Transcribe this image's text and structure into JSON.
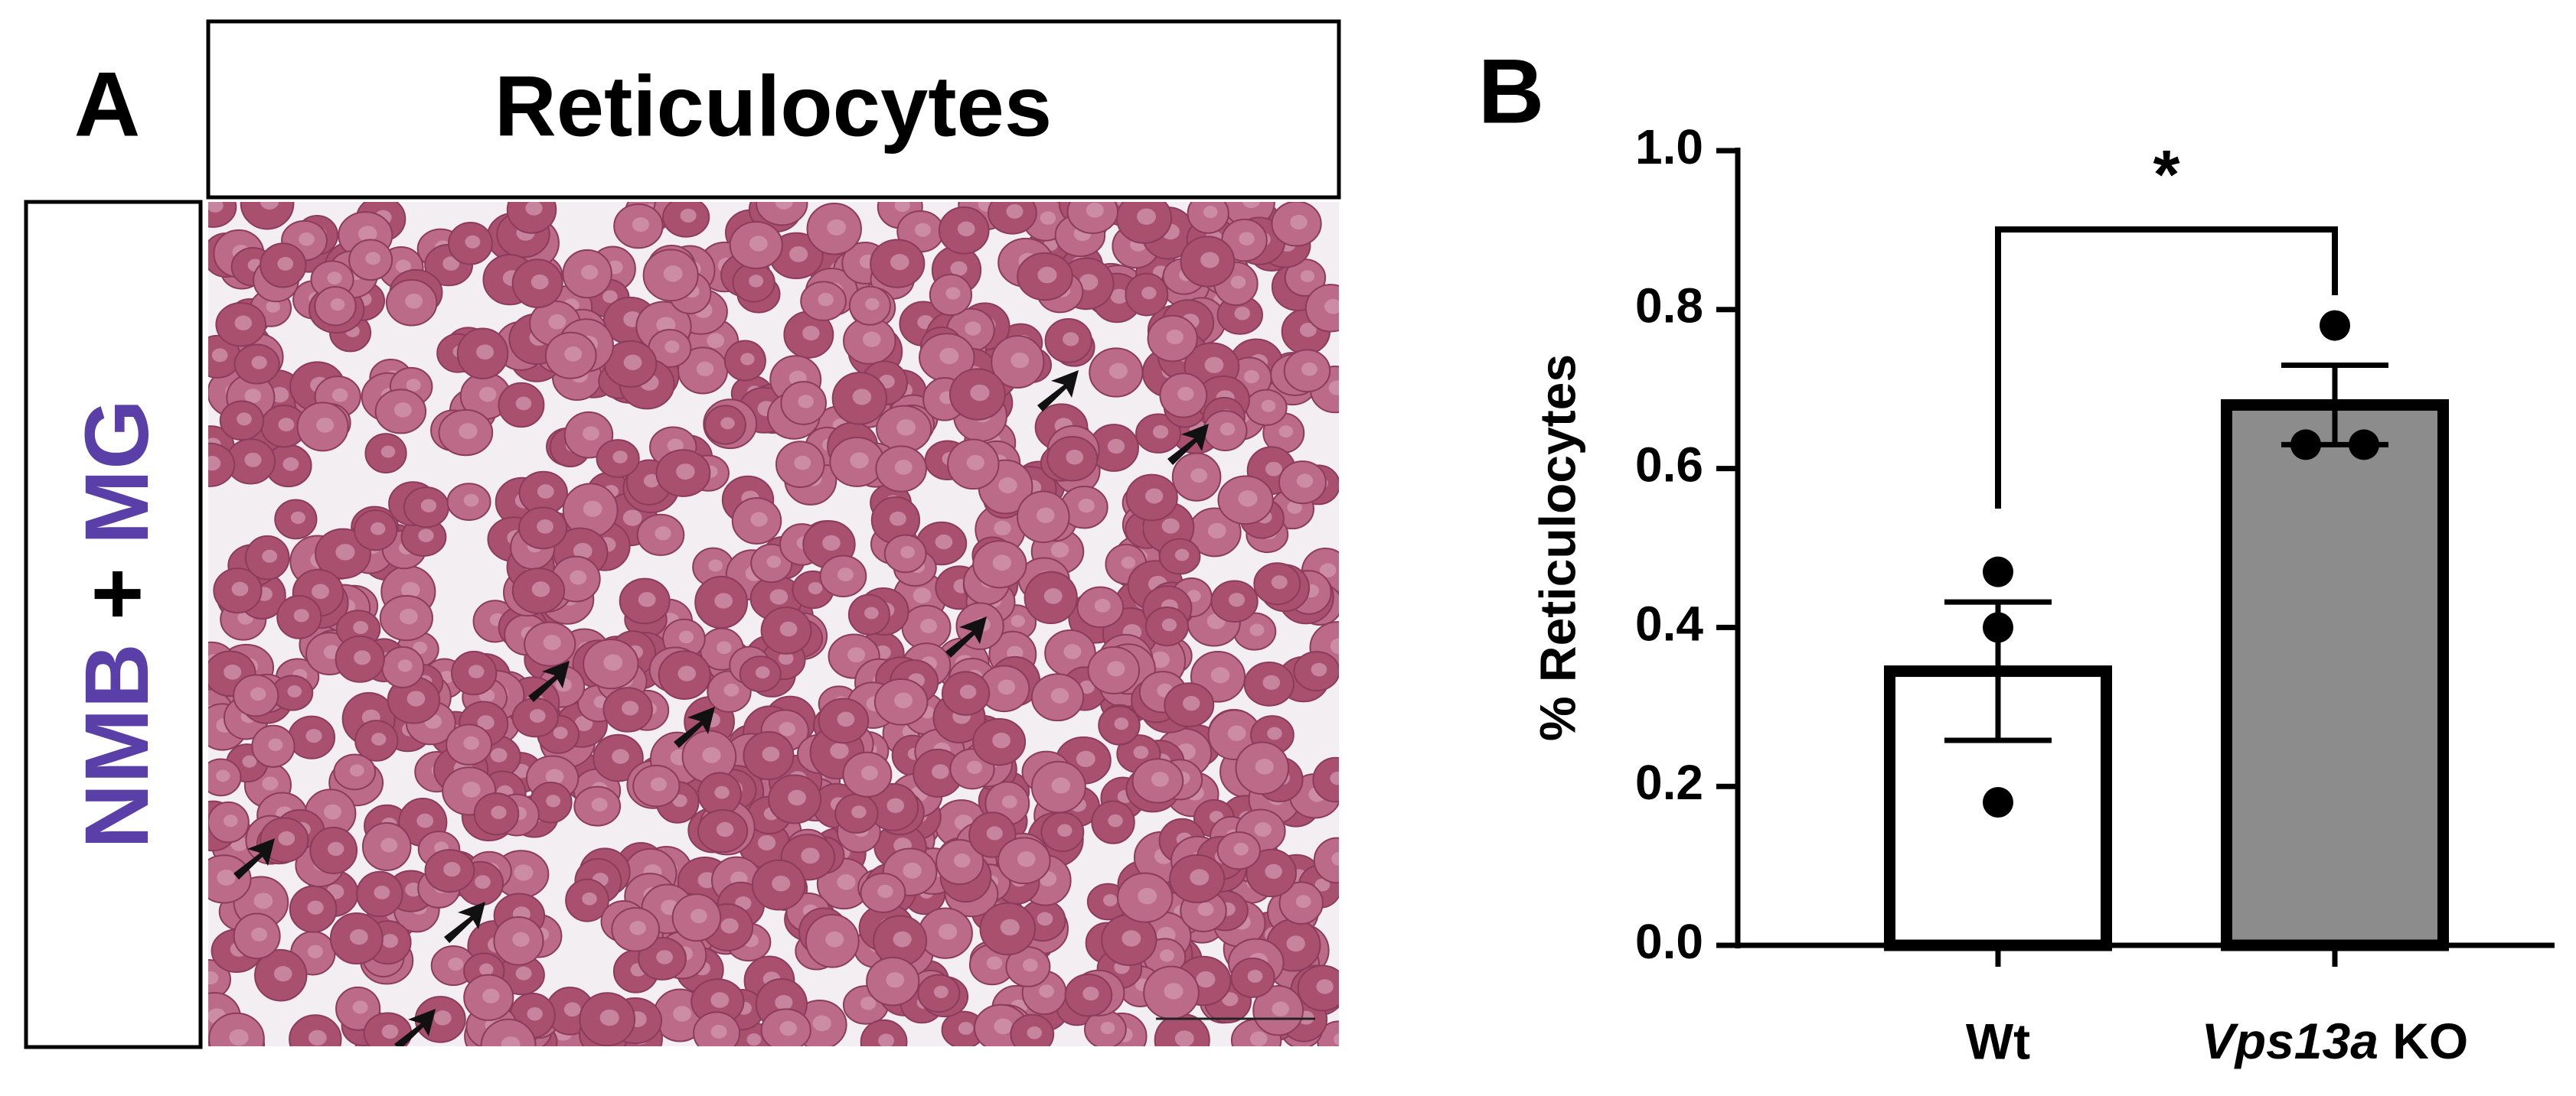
{
  "panel_a": {
    "label": "A",
    "title": "Reticulocytes",
    "stain": [
      "NMB",
      "+",
      "MG"
    ]
  },
  "panel_b_label": "B",
  "chart_data": {
    "type": "bar",
    "categories": [
      "Wt",
      "Vps13a KO"
    ],
    "values": [
      0.345,
      0.68
    ],
    "errors": [
      0.087,
      0.05
    ],
    "points": [
      [
        0.47,
        0.4,
        0.18
      ],
      [
        0.78,
        0.63,
        0.63
      ]
    ],
    "colors": [
      "#ffffff",
      "#8c8c8c"
    ],
    "y_label": "% Reticulocytes",
    "annotation": "*",
    "ylim": [
      0,
      1
    ],
    "yticks": [
      {
        "value": 0,
        "label": "0.0"
      },
      {
        "value": 0.2,
        "label": "0.2"
      },
      {
        "value": 0.4,
        "label": "0.4"
      },
      {
        "value": 0.6,
        "label": "0.6"
      },
      {
        "value": 0.8,
        "label": "0.8"
      },
      {
        "value": 1,
        "label": "1.0"
      }
    ]
  }
}
